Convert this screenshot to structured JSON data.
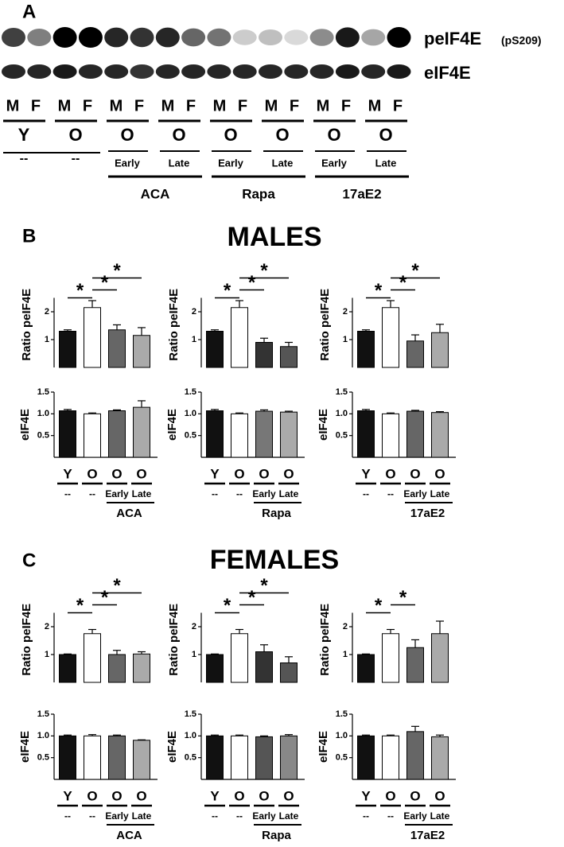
{
  "labels": {
    "a": "A",
    "b": "B",
    "c": "C",
    "males": "MALES",
    "females": "FEMALES"
  },
  "blot": {
    "row1": "peIF4E",
    "row1_site": "(pS209)",
    "row2": "eIF4E",
    "lanes": [
      "M",
      "F",
      "M",
      "F",
      "M",
      "F",
      "M",
      "F",
      "M",
      "F",
      "M",
      "F",
      "M",
      "F",
      "M",
      "F"
    ],
    "groups": [
      "Y",
      "O",
      "O",
      "O",
      "O",
      "O",
      "O",
      "O"
    ],
    "timing": [
      "--",
      "--",
      "Early",
      "Late",
      "Early",
      "Late",
      "Early",
      "Late"
    ],
    "treatments": [
      "ACA",
      "Rapa",
      "17aE2"
    ]
  },
  "chart_data": [
    {
      "type": "bar",
      "ylabel": "Ratio peIF4E",
      "values": [
        1.3,
        2.15,
        1.35,
        1.15
      ],
      "errors": [
        0.05,
        0.25,
        0.18,
        0.28
      ],
      "colors": [
        "#111111",
        "#ffffff",
        "#666666",
        "#aaaaaa"
      ],
      "ylim": [
        0,
        2.5
      ],
      "yticks": [
        1,
        2
      ],
      "annotations": [
        "*",
        "*",
        "*"
      ]
    },
    {
      "type": "bar",
      "ylabel": "eIF4E",
      "values": [
        1.07,
        1.0,
        1.07,
        1.15
      ],
      "errors": [
        0.03,
        0.02,
        0.02,
        0.15
      ],
      "colors": [
        "#111111",
        "#ffffff",
        "#666666",
        "#aaaaaa"
      ],
      "ylim": [
        0,
        1.5
      ],
      "yticks": [
        0.5,
        {
          "value": 1,
          "label": "1.0"
        },
        1.5
      ],
      "categories": [
        "Y",
        "O",
        "O",
        "O"
      ],
      "subcategories": [
        "--",
        "--",
        "Early",
        "Late"
      ],
      "group": "ACA"
    },
    {
      "type": "bar",
      "ylabel": "Ratio peIF4E",
      "values": [
        1.3,
        2.15,
        0.9,
        0.75
      ],
      "errors": [
        0.05,
        0.25,
        0.15,
        0.15
      ],
      "colors": [
        "#111111",
        "#ffffff",
        "#333333",
        "#555555"
      ],
      "ylim": [
        0,
        2.5
      ],
      "yticks": [
        1,
        2
      ],
      "annotations": [
        "*",
        "*",
        "*"
      ]
    },
    {
      "type": "bar",
      "ylabel": "eIF4E",
      "values": [
        1.07,
        1.0,
        1.06,
        1.04
      ],
      "errors": [
        0.03,
        0.02,
        0.03,
        0.02
      ],
      "colors": [
        "#111111",
        "#ffffff",
        "#777777",
        "#aaaaaa"
      ],
      "ylim": [
        0,
        1.5
      ],
      "yticks": [
        0.5,
        {
          "value": 1,
          "label": "1.0"
        },
        1.5
      ],
      "categories": [
        "Y",
        "O",
        "O",
        "O"
      ],
      "subcategories": [
        "--",
        "--",
        "Early",
        "Late"
      ],
      "group": "Rapa"
    },
    {
      "type": "bar",
      "ylabel": "Ratio peIF4E",
      "values": [
        1.3,
        2.15,
        0.95,
        1.25
      ],
      "errors": [
        0.05,
        0.25,
        0.22,
        0.3
      ],
      "colors": [
        "#111111",
        "#ffffff",
        "#666666",
        "#aaaaaa"
      ],
      "ylim": [
        0,
        2.5
      ],
      "yticks": [
        1,
        2
      ],
      "annotations": [
        "*",
        "*",
        "*"
      ]
    },
    {
      "type": "bar",
      "ylabel": "eIF4E",
      "values": [
        1.07,
        1.0,
        1.06,
        1.03
      ],
      "errors": [
        0.03,
        0.02,
        0.02,
        0.02
      ],
      "colors": [
        "#111111",
        "#ffffff",
        "#666666",
        "#aaaaaa"
      ],
      "ylim": [
        0,
        1.5
      ],
      "yticks": [
        0.5,
        {
          "value": 1,
          "label": "1.0"
        },
        1.5
      ],
      "categories": [
        "Y",
        "O",
        "O",
        "O"
      ],
      "subcategories": [
        "--",
        "--",
        "Early",
        "Late"
      ],
      "group": "17aE2"
    },
    {
      "type": "bar",
      "ylabel": "Ratio peIF4E",
      "values": [
        1.0,
        1.75,
        1.0,
        1.02
      ],
      "errors": [
        0.02,
        0.15,
        0.15,
        0.08
      ],
      "colors": [
        "#111111",
        "#ffffff",
        "#666666",
        "#aaaaaa"
      ],
      "ylim": [
        0,
        2.5
      ],
      "yticks": [
        1,
        2
      ],
      "annotations": [
        "*",
        "*",
        "*"
      ]
    },
    {
      "type": "bar",
      "ylabel": "eIF4E",
      "values": [
        1.0,
        1.0,
        1.0,
        0.9
      ],
      "errors": [
        0.02,
        0.03,
        0.02,
        0.01
      ],
      "colors": [
        "#111111",
        "#ffffff",
        "#666666",
        "#aaaaaa"
      ],
      "ylim": [
        0,
        1.5
      ],
      "yticks": [
        0.5,
        {
          "value": 1,
          "label": "1.0"
        },
        1.5
      ],
      "categories": [
        "Y",
        "O",
        "O",
        "O"
      ],
      "subcategories": [
        "--",
        "--",
        "Early",
        "Late"
      ],
      "group": "ACA"
    },
    {
      "type": "bar",
      "ylabel": "Ratio peIF4E",
      "values": [
        1.0,
        1.75,
        1.1,
        0.7
      ],
      "errors": [
        0.02,
        0.15,
        0.25,
        0.22
      ],
      "colors": [
        "#111111",
        "#ffffff",
        "#333333",
        "#555555"
      ],
      "ylim": [
        0,
        2.5
      ],
      "yticks": [
        1,
        2
      ],
      "annotations": [
        "*",
        "*",
        "*"
      ]
    },
    {
      "type": "bar",
      "ylabel": "eIF4E",
      "values": [
        1.0,
        1.0,
        0.98,
        1.0
      ],
      "errors": [
        0.02,
        0.02,
        0.02,
        0.03
      ],
      "colors": [
        "#111111",
        "#ffffff",
        "#555555",
        "#888888"
      ],
      "ylim": [
        0,
        1.5
      ],
      "yticks": [
        0.5,
        {
          "value": 1,
          "label": "1.0"
        },
        1.5
      ],
      "categories": [
        "Y",
        "O",
        "O",
        "O"
      ],
      "subcategories": [
        "--",
        "--",
        "Early",
        "Late"
      ],
      "group": "Rapa"
    },
    {
      "type": "bar",
      "ylabel": "Ratio peIF4E",
      "values": [
        1.0,
        1.75,
        1.25,
        1.75
      ],
      "errors": [
        0.02,
        0.15,
        0.28,
        0.45
      ],
      "colors": [
        "#111111",
        "#ffffff",
        "#666666",
        "#aaaaaa"
      ],
      "ylim": [
        0,
        2.5
      ],
      "yticks": [
        1,
        2
      ],
      "annotations": [
        "*",
        "*"
      ]
    },
    {
      "type": "bar",
      "ylabel": "eIF4E",
      "values": [
        1.0,
        1.0,
        1.1,
        0.98
      ],
      "errors": [
        0.02,
        0.02,
        0.12,
        0.04
      ],
      "colors": [
        "#111111",
        "#ffffff",
        "#666666",
        "#aaaaaa"
      ],
      "ylim": [
        0,
        1.5
      ],
      "yticks": [
        0.5,
        {
          "value": 1,
          "label": "1.0"
        },
        1.5
      ],
      "categories": [
        "Y",
        "O",
        "O",
        "O"
      ],
      "subcategories": [
        "--",
        "--",
        "Early",
        "Late"
      ],
      "group": "17aE2"
    }
  ]
}
